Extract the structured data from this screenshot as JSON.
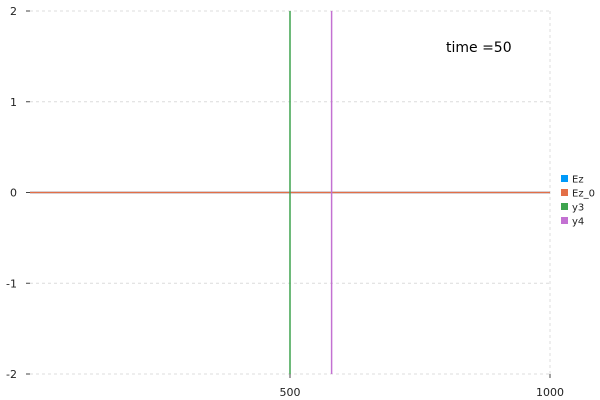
{
  "chart_data": {
    "type": "line",
    "title": "",
    "xlabel": "",
    "ylabel": "",
    "xlim": [
      0,
      1000
    ],
    "ylim": [
      -2,
      2
    ],
    "grid": true,
    "legend_position": "right",
    "x_ticks": [
      500,
      1000
    ],
    "y_ticks": [
      -2,
      -1,
      0,
      1,
      2
    ],
    "annotation": "time =50",
    "series": [
      {
        "name": "Ez",
        "color": "#009AFA",
        "kind": "hline",
        "y": 0
      },
      {
        "name": "Ez_0",
        "color": "#E36F47",
        "kind": "hline",
        "y": 0
      },
      {
        "name": "y3",
        "color": "#3EA44E",
        "kind": "vline",
        "x": 500
      },
      {
        "name": "y4",
        "color": "#C371D2",
        "kind": "vline",
        "x": 580
      }
    ]
  }
}
